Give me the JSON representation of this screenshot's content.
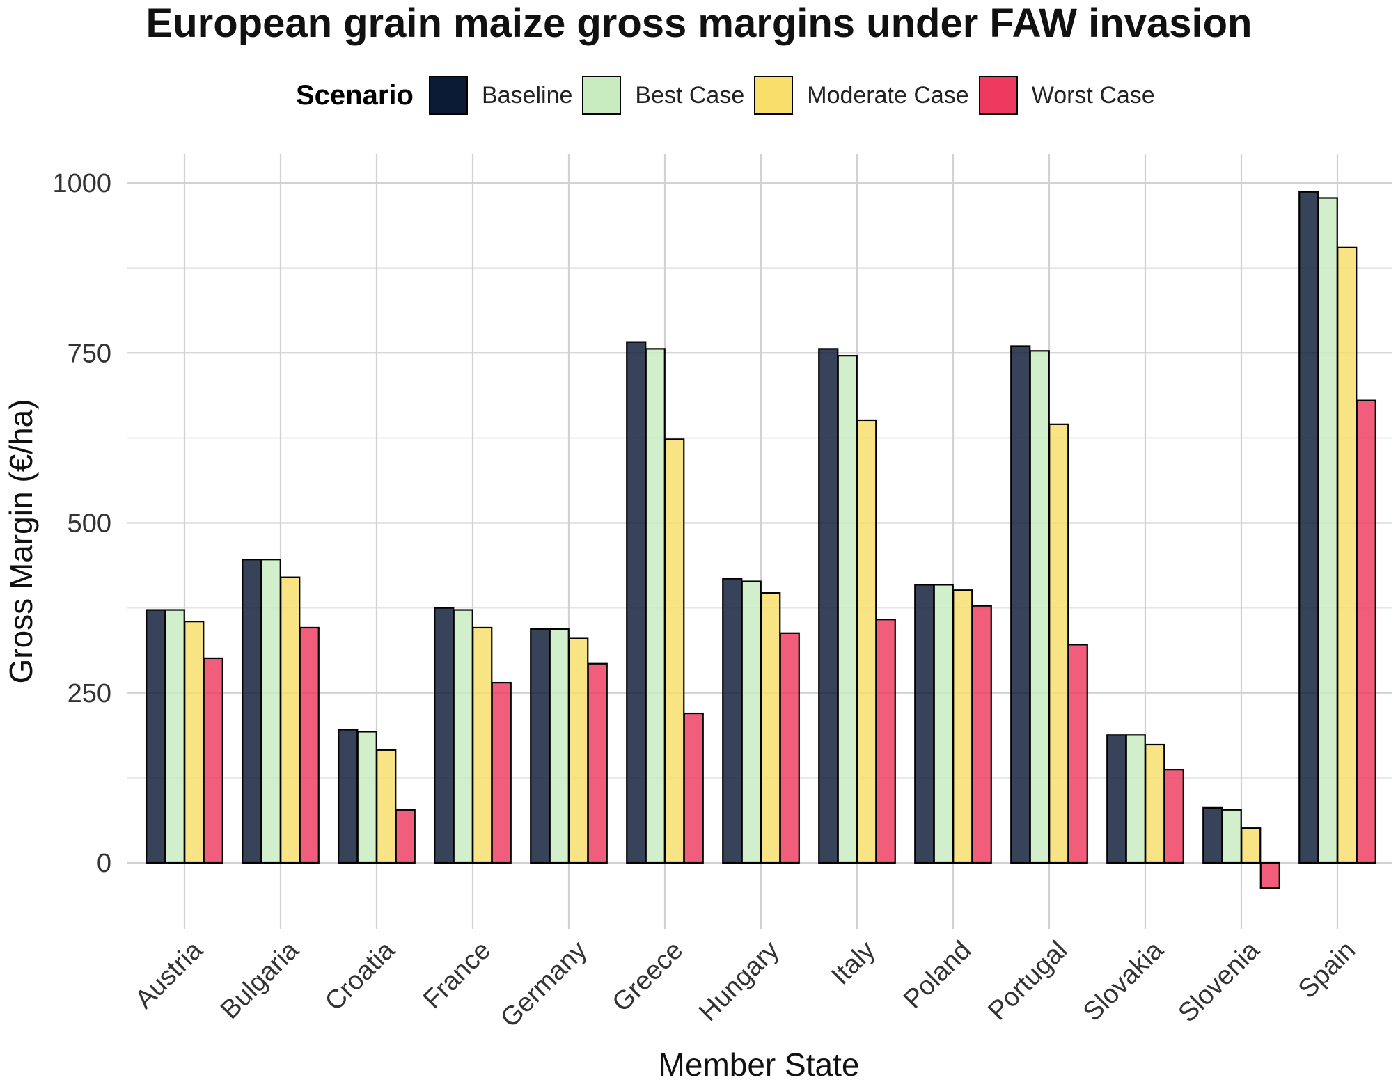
{
  "chart_data": {
    "type": "bar",
    "title": "European grain maize gross margins under FAW invasion",
    "xlabel": "Member State",
    "ylabel": "Gross Margin (€/ha)",
    "ylim": [
      -90,
      1040
    ],
    "yticks": [
      0,
      250,
      500,
      750,
      1000
    ],
    "grid": true,
    "legend_title": "Scenario",
    "legend_position": "top",
    "categories": [
      "Austria",
      "Bulgaria",
      "Croatia",
      "France",
      "Germany",
      "Greece",
      "Hungary",
      "Italy",
      "Poland",
      "Portugal",
      "Slovakia",
      "Slovenia",
      "Spain"
    ],
    "series": [
      {
        "name": "Baseline",
        "color": "#0b1a35",
        "values": [
          372,
          446,
          196,
          375,
          344,
          766,
          418,
          756,
          409,
          760,
          188,
          81,
          987
        ]
      },
      {
        "name": "Best Case",
        "color": "#c8ebc0",
        "values": [
          372,
          446,
          193,
          372,
          344,
          756,
          414,
          746,
          409,
          753,
          188,
          78,
          978
        ]
      },
      {
        "name": "Moderate Case",
        "color": "#f8de6a",
        "values": [
          355,
          420,
          166,
          346,
          330,
          623,
          397,
          651,
          401,
          645,
          174,
          51,
          905
        ]
      },
      {
        "name": "Worst Case",
        "color": "#ee3a5e",
        "values": [
          301,
          346,
          78,
          265,
          293,
          220,
          338,
          358,
          378,
          321,
          137,
          -37,
          680
        ]
      }
    ]
  }
}
